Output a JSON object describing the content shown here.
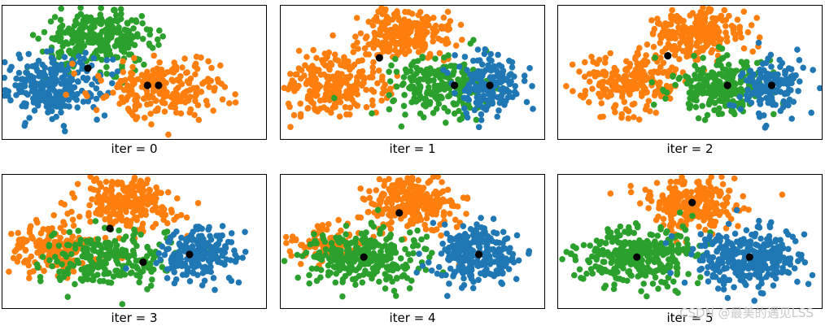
{
  "figure": {
    "watermark": "CSDN @最美的遇见LSS"
  },
  "colors": {
    "blue": "#1f77b4",
    "orange": "#ff7f0e",
    "green": "#2ca02c",
    "centroid": "#000000"
  },
  "chart_data": [
    {
      "type": "scatter",
      "title": "",
      "xlabel": "iter = 0",
      "ylabel": "",
      "grid": false,
      "xlim": [
        -3,
        3
      ],
      "ylim": [
        -1.1,
        1.5
      ],
      "clusters": [
        {
          "color": "green",
          "cx": -0.8,
          "cy": 0.85,
          "sx": 0.62,
          "sy": 0.27,
          "n": 300
        },
        {
          "color": "blue",
          "cx": -1.9,
          "cy": -0.05,
          "sx": 0.65,
          "sy": 0.3,
          "n": 260
        },
        {
          "color": "orange",
          "cx": 0.75,
          "cy": -0.1,
          "sx": 0.72,
          "sy": 0.3,
          "n": 230
        }
      ],
      "centroids": [
        [
          -1.05,
          0.28
        ],
        [
          0.3,
          -0.05
        ],
        [
          0.55,
          -0.05
        ]
      ]
    },
    {
      "type": "scatter",
      "title": "",
      "xlabel": "iter = 1",
      "ylabel": "",
      "grid": false,
      "xlim": [
        -3,
        3
      ],
      "ylim": [
        -1.1,
        1.5
      ],
      "clusters": [
        {
          "color": "orange",
          "cx": -0.1,
          "cy": 0.95,
          "sx": 0.5,
          "sy": 0.25,
          "n": 240
        },
        {
          "color": "orange",
          "cx": -1.8,
          "cy": -0.05,
          "sx": 0.6,
          "sy": 0.3,
          "n": 260
        },
        {
          "color": "green",
          "cx": 0.65,
          "cy": -0.05,
          "sx": 0.55,
          "sy": 0.27,
          "n": 220
        },
        {
          "color": "blue",
          "cx": 1.7,
          "cy": -0.05,
          "sx": 0.4,
          "sy": 0.28,
          "n": 150
        }
      ],
      "centroids": [
        [
          -0.75,
          0.48
        ],
        [
          0.95,
          -0.05
        ],
        [
          1.75,
          -0.05
        ]
      ]
    },
    {
      "type": "scatter",
      "title": "",
      "xlabel": "iter = 2",
      "ylabel": "",
      "grid": false,
      "xlim": [
        -3,
        3
      ],
      "ylim": [
        -1.1,
        1.5
      ],
      "clusters": [
        {
          "color": "orange",
          "cx": 0.1,
          "cy": 0.95,
          "sx": 0.5,
          "sy": 0.25,
          "n": 240
        },
        {
          "color": "orange",
          "cx": -1.4,
          "cy": 0.0,
          "sx": 0.6,
          "sy": 0.3,
          "n": 230
        },
        {
          "color": "green",
          "cx": 0.7,
          "cy": -0.05,
          "sx": 0.6,
          "sy": 0.27,
          "n": 240
        },
        {
          "color": "blue",
          "cx": 1.85,
          "cy": -0.05,
          "sx": 0.4,
          "sy": 0.28,
          "n": 150
        }
      ],
      "centroids": [
        [
          -0.5,
          0.52
        ],
        [
          0.85,
          -0.05
        ],
        [
          1.85,
          -0.05
        ]
      ]
    },
    {
      "type": "scatter",
      "title": "",
      "xlabel": "iter = 3",
      "ylabel": "",
      "grid": false,
      "xlim": [
        -3,
        3
      ],
      "ylim": [
        -1.1,
        1.5
      ],
      "clusters": [
        {
          "color": "orange",
          "cx": -0.15,
          "cy": 0.95,
          "sx": 0.55,
          "sy": 0.27,
          "n": 250
        },
        {
          "color": "orange",
          "cx": -1.8,
          "cy": 0.05,
          "sx": 0.5,
          "sy": 0.25,
          "n": 170
        },
        {
          "color": "green",
          "cx": -0.6,
          "cy": -0.15,
          "sx": 0.75,
          "sy": 0.27,
          "n": 240
        },
        {
          "color": "blue",
          "cx": 1.5,
          "cy": -0.05,
          "sx": 0.45,
          "sy": 0.28,
          "n": 200
        }
      ],
      "centroids": [
        [
          -0.55,
          0.45
        ],
        [
          0.2,
          -0.2
        ],
        [
          1.25,
          -0.05
        ]
      ]
    },
    {
      "type": "scatter",
      "title": "",
      "xlabel": "iter = 4",
      "ylabel": "",
      "grid": false,
      "xlim": [
        -3,
        3
      ],
      "ylim": [
        -1.1,
        1.5
      ],
      "clusters": [
        {
          "color": "orange",
          "cx": 0.0,
          "cy": 0.95,
          "sx": 0.55,
          "sy": 0.27,
          "n": 250
        },
        {
          "color": "orange",
          "cx": -2.0,
          "cy": 0.15,
          "sx": 0.5,
          "sy": 0.2,
          "n": 90
        },
        {
          "color": "green",
          "cx": -1.15,
          "cy": -0.1,
          "sx": 0.75,
          "sy": 0.27,
          "n": 280
        },
        {
          "color": "blue",
          "cx": 1.45,
          "cy": -0.05,
          "sx": 0.5,
          "sy": 0.28,
          "n": 240
        }
      ],
      "centroids": [
        [
          -0.3,
          0.75
        ],
        [
          -1.1,
          -0.1
        ],
        [
          1.5,
          -0.05
        ]
      ]
    },
    {
      "type": "scatter",
      "title": "",
      "xlabel": "iter = 5",
      "ylabel": "",
      "grid": false,
      "xlim": [
        -3,
        3
      ],
      "ylim": [
        -1.1,
        1.5
      ],
      "clusters": [
        {
          "color": "orange",
          "cx": 0.0,
          "cy": 0.95,
          "sx": 0.55,
          "sy": 0.27,
          "n": 250
        },
        {
          "color": "green",
          "cx": -1.15,
          "cy": -0.1,
          "sx": 0.7,
          "sy": 0.28,
          "n": 320
        },
        {
          "color": "blue",
          "cx": 1.35,
          "cy": -0.1,
          "sx": 0.6,
          "sy": 0.28,
          "n": 300
        }
      ],
      "centroids": [
        [
          0.05,
          0.95
        ],
        [
          -1.2,
          -0.1
        ],
        [
          1.35,
          -0.1
        ]
      ]
    }
  ]
}
